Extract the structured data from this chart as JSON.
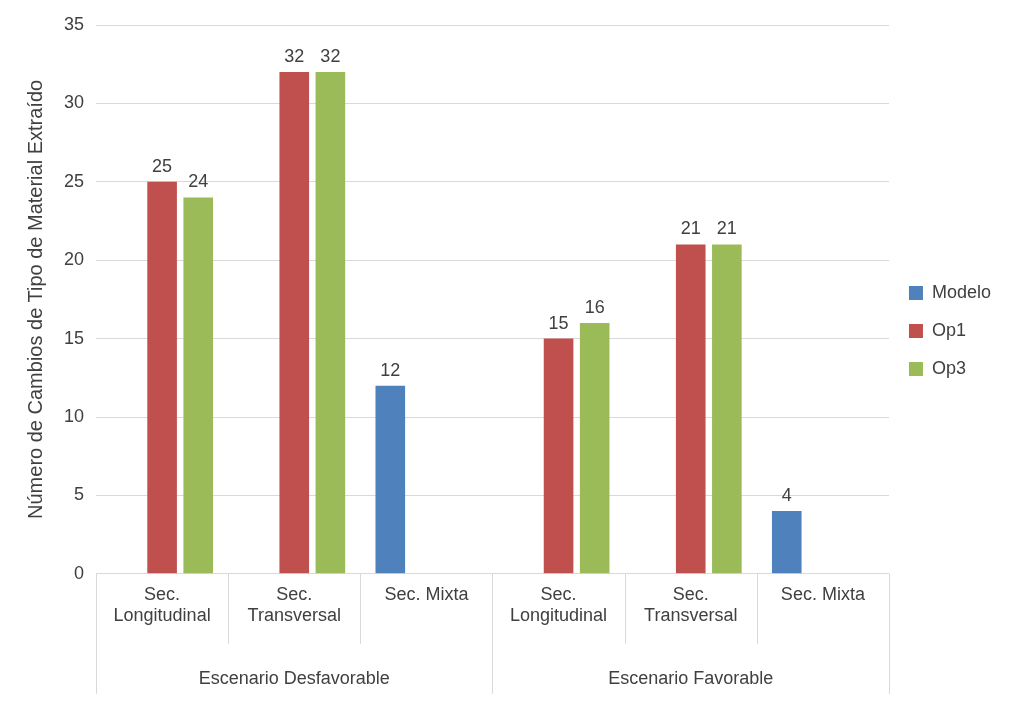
{
  "chart_data": {
    "type": "bar",
    "ylabel": "Número de Cambios de Tipo de Material Extraído",
    "categories": [
      "Sec. Longitudinal",
      "Sec. Transversal",
      "Sec. Mixta",
      "Sec. Longitudinal",
      "Sec. Transversal",
      "Sec. Mixta"
    ],
    "series": [
      {
        "name": "Modelo",
        "color": "#4f81bd",
        "values": [
          null,
          null,
          12,
          null,
          null,
          4
        ]
      },
      {
        "name": "Op1",
        "color": "#c0504d",
        "values": [
          25,
          32,
          null,
          15,
          21,
          null
        ]
      },
      {
        "name": "Op3",
        "color": "#9bbb59",
        "values": [
          24,
          32,
          null,
          16,
          21,
          null
        ]
      }
    ],
    "annotations": [
      "Escenario Desfavorable",
      "Escenario Favorable"
    ],
    "ylim": [
      0,
      35
    ],
    "yticks": [
      0,
      5,
      10,
      15,
      20,
      25,
      30,
      35
    ],
    "grid": "y",
    "legend": "right",
    "data_labels": true
  }
}
